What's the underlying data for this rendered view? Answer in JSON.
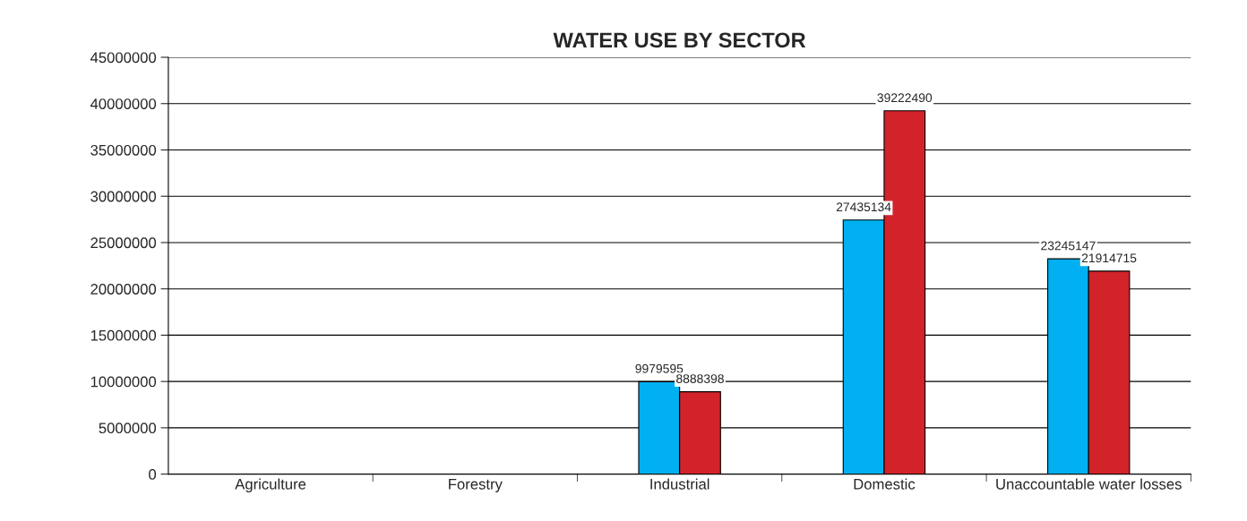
{
  "chart_data": {
    "type": "bar",
    "title": "WATER USE BY SECTOR",
    "categories": [
      "Agriculture",
      "Forestry",
      "Industrial",
      "Domestic",
      "Unaccountable water losses"
    ],
    "series": [
      {
        "color": "#00b0f0",
        "values": [
          null,
          null,
          9979595,
          27435134,
          23245147
        ]
      },
      {
        "color": "#d2232a",
        "values": [
          null,
          null,
          8888398,
          39222490,
          21914715
        ]
      }
    ],
    "ylim": [
      0,
      45000000
    ],
    "yticks": [
      0,
      5000000,
      10000000,
      15000000,
      20000000,
      25000000,
      30000000,
      35000000,
      40000000,
      45000000
    ],
    "grid": "y",
    "data_labels": true
  }
}
